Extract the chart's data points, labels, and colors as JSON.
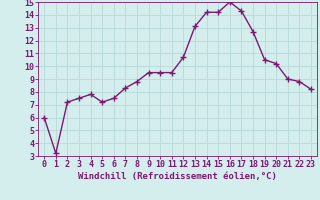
{
  "x": [
    0,
    1,
    2,
    3,
    4,
    5,
    6,
    7,
    8,
    9,
    10,
    11,
    12,
    13,
    14,
    15,
    16,
    17,
    18,
    19,
    20,
    21,
    22,
    23
  ],
  "y": [
    6.0,
    3.2,
    7.2,
    7.5,
    7.8,
    7.2,
    7.5,
    8.3,
    8.8,
    9.5,
    9.5,
    9.5,
    10.7,
    13.1,
    14.2,
    14.2,
    15.0,
    14.3,
    12.7,
    10.5,
    10.2,
    9.0,
    8.8,
    8.2
  ],
  "line_color": "#7b1a6e",
  "marker": "+",
  "marker_size": 4,
  "bg_color": "#d4eeee",
  "grid_color": "#b8d8d8",
  "xlabel": "Windchill (Refroidissement éolien,°C)",
  "xlim": [
    -0.5,
    23.5
  ],
  "ylim": [
    3,
    15
  ],
  "yticks": [
    3,
    4,
    5,
    6,
    7,
    8,
    9,
    10,
    11,
    12,
    13,
    14,
    15
  ],
  "xticks": [
    0,
    1,
    2,
    3,
    4,
    5,
    6,
    7,
    8,
    9,
    10,
    11,
    12,
    13,
    14,
    15,
    16,
    17,
    18,
    19,
    20,
    21,
    22,
    23
  ],
  "label_fontsize": 6.5,
  "tick_fontsize": 6,
  "line_width": 1.0
}
